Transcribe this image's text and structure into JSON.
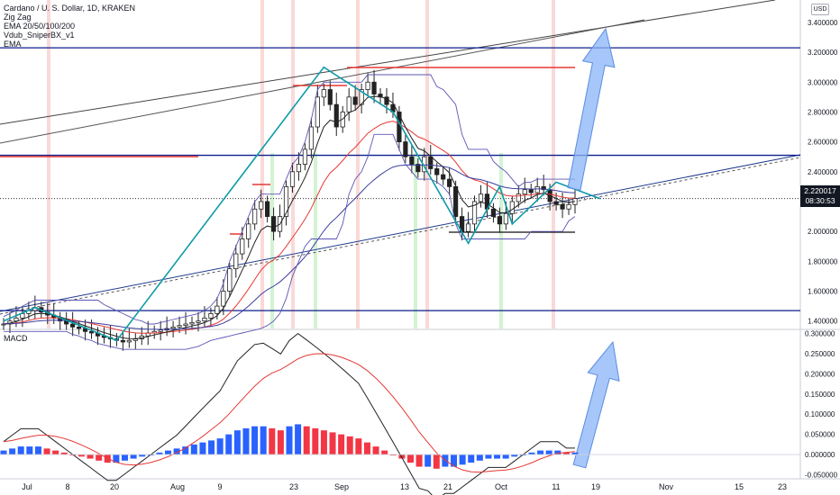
{
  "legend": {
    "title": "Cardano / U. S. Dollar, 1D, KRAKEN",
    "items": [
      "Zig Zag",
      "EMA 20/50/100/200",
      "Vdub_SniperBX_v1",
      "EMA"
    ]
  },
  "currency": "USD",
  "last_price": "2.220017",
  "countdown": "08:30:53",
  "macd_label": "MACD",
  "colors": {
    "up": "#2962ff",
    "down": "#f23645",
    "zigzag": "#0f9ba8",
    "hline": "#0d1f8c",
    "red_level": "#e53935",
    "arrow": "#8ab4f8"
  },
  "chart_data": [
    {
      "type": "candlestick",
      "pane": "price",
      "x_tick_labels": [
        "Jul",
        "8",
        "20",
        "Aug",
        "9",
        "23",
        "Sep",
        "13",
        "21",
        "Oct",
        "11",
        "19",
        "Nov",
        "15",
        "23"
      ],
      "y_tick_labels": [
        "3.400000",
        "3.200000",
        "3.000000",
        "2.800000",
        "2.600000",
        "2.400000",
        "2.200000",
        "2.000000",
        "1.800000",
        "1.600000",
        "1.400000"
      ],
      "ylim": [
        1.35,
        3.55
      ],
      "horizontal_levels": [
        3.23,
        2.51,
        1.47
      ],
      "red_levels": [
        3.1,
        2.97,
        2.47
      ],
      "close_series": [
        1.38,
        1.4,
        1.42,
        1.45,
        1.47,
        1.49,
        1.46,
        1.44,
        1.42,
        1.4,
        1.38,
        1.36,
        1.35,
        1.33,
        1.32,
        1.3,
        1.29,
        1.28,
        1.27,
        1.26,
        1.27,
        1.28,
        1.3,
        1.32,
        1.33,
        1.34,
        1.35,
        1.36,
        1.37,
        1.38,
        1.39,
        1.4,
        1.42,
        1.45,
        1.5,
        1.6,
        1.75,
        1.85,
        1.95,
        2.05,
        2.15,
        2.2,
        2.1,
        2.0,
        2.1,
        2.3,
        2.4,
        2.45,
        2.55,
        2.7,
        2.9,
        2.95,
        2.85,
        2.7,
        2.8,
        2.9,
        2.85,
        2.95,
        3.0,
        2.92,
        2.9,
        2.85,
        2.8,
        2.6,
        2.5,
        2.45,
        2.4,
        2.5,
        2.42,
        2.38,
        2.35,
        2.3,
        2.1,
        2.0,
        2.05,
        2.2,
        2.25,
        2.15,
        2.1,
        2.05,
        2.12,
        2.2,
        2.25,
        2.28,
        2.26,
        2.3,
        2.28,
        2.2,
        2.18,
        2.15,
        2.18,
        2.22
      ],
      "zigzag_points": [
        [
          0,
          1.4
        ],
        [
          5,
          1.49
        ],
        [
          18,
          1.27
        ],
        [
          51,
          3.1
        ],
        [
          62,
          2.8
        ],
        [
          74,
          1.92
        ],
        [
          79,
          2.3
        ],
        [
          81,
          2.05
        ],
        [
          88,
          2.33
        ],
        [
          95,
          2.22
        ]
      ]
    },
    {
      "type": "bar",
      "pane": "MACD",
      "y_tick_labels": [
        "0.300000",
        "0.250000",
        "0.200000",
        "0.150000",
        "0.100000",
        "0.050000",
        "0.000000",
        "-0.050000"
      ],
      "ylim": [
        -0.06,
        0.31
      ],
      "histogram": [
        0.01,
        0.015,
        0.02,
        0.02,
        0.02,
        0.015,
        0.01,
        0.005,
        0.0,
        -0.005,
        -0.01,
        -0.015,
        -0.02,
        -0.02,
        -0.015,
        -0.01,
        -0.005,
        0.0,
        0.005,
        0.01,
        0.015,
        0.02,
        0.025,
        0.03,
        0.035,
        0.04,
        0.05,
        0.06,
        0.065,
        0.07,
        0.07,
        0.065,
        0.06,
        0.07,
        0.075,
        0.07,
        0.065,
        0.06,
        0.055,
        0.05,
        0.045,
        0.04,
        0.03,
        0.02,
        0.01,
        0.0,
        -0.01,
        -0.02,
        -0.03,
        -0.03,
        -0.035,
        -0.03,
        -0.03,
        -0.025,
        -0.02,
        -0.015,
        -0.01,
        -0.01,
        -0.01,
        -0.005,
        0.0,
        0.005,
        0.01,
        0.01,
        0.01,
        0.005,
        0.005
      ]
    }
  ]
}
